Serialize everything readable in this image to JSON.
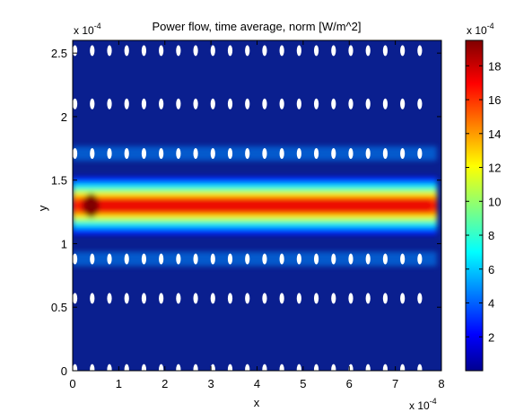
{
  "chart_data": {
    "type": "heatmap",
    "title": "Power flow, time average, norm [W/m^2]",
    "xlabel": "x",
    "ylabel": "y",
    "x_exponent_label": "x 10",
    "x_exponent": "-4",
    "y_exponent_label": "x 10",
    "y_exponent": "-4",
    "colorbar_exponent_label": "x 10",
    "colorbar_exponent": "-4",
    "xlim": [
      0,
      8
    ],
    "ylim": [
      0,
      2.6
    ],
    "x_ticks": [
      0,
      1,
      2,
      3,
      4,
      5,
      6,
      7,
      8
    ],
    "x_tick_labels": [
      "0",
      "1",
      "2",
      "3",
      "4",
      "5",
      "6",
      "7",
      "8"
    ],
    "y_ticks": [
      0,
      0.5,
      1,
      1.5,
      2,
      2.5
    ],
    "y_tick_labels": [
      "0",
      "0.5",
      "1",
      "1.5",
      "2",
      "2.5"
    ],
    "colorbar_range": [
      0,
      19.5
    ],
    "colorbar_ticks": [
      2,
      4,
      6,
      8,
      10,
      12,
      14,
      16,
      18
    ],
    "colorbar_tick_labels": [
      "2",
      "4",
      "6",
      "8",
      "10",
      "12",
      "14",
      "16",
      "18"
    ],
    "colormap": "jet",
    "field": {
      "source_x_range": [
        0,
        7.9
      ],
      "guide_center_y": 1.3,
      "guide_half_width": 0.17,
      "peak_value": 19,
      "hotspot_x": 0.4
    },
    "inclusions": {
      "color": "#ffffff",
      "x_start": 0.05,
      "x_step": 0.374,
      "count": 21,
      "rows_y": [
        0.01,
        0.57,
        0.88,
        1.71,
        2.1,
        2.52
      ]
    },
    "colors": {
      "background": "#ffffff",
      "low": "#0a1f8f",
      "high": "#800000"
    }
  }
}
